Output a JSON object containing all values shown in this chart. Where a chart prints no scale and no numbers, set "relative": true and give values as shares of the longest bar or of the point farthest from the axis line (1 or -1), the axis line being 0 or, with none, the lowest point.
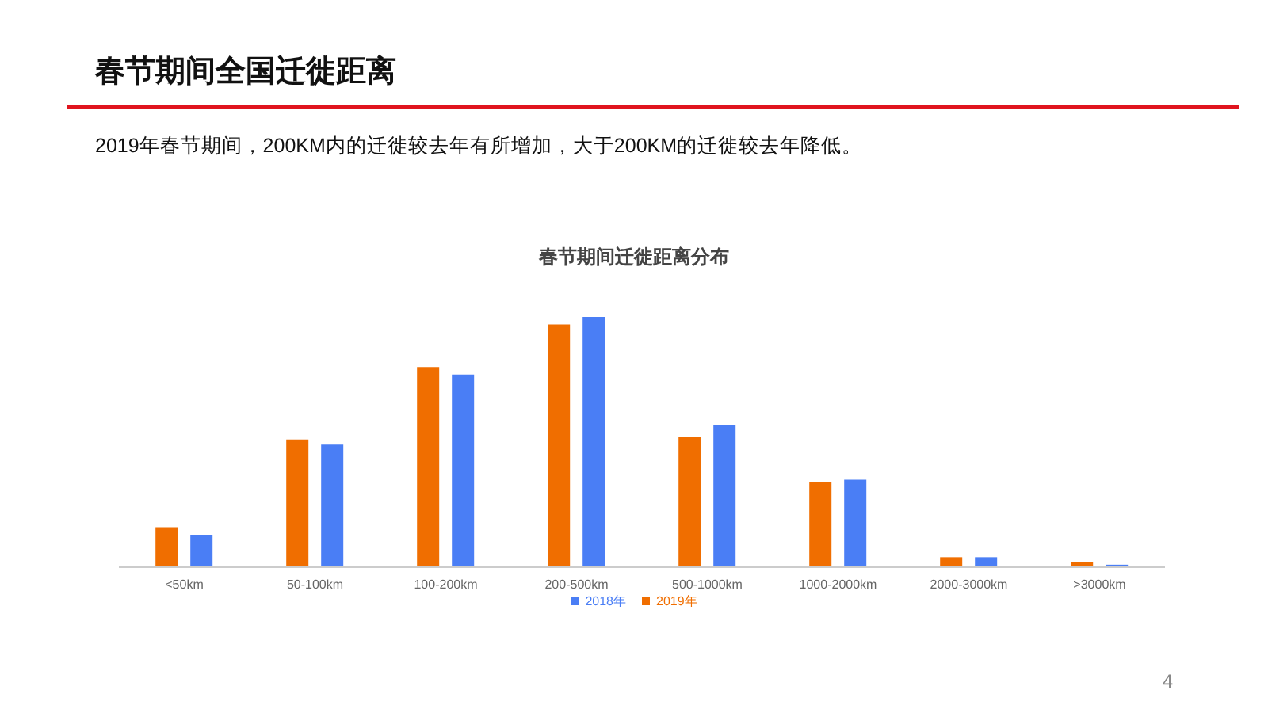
{
  "chart_data": {
    "type": "bar",
    "title": "春节期间全国迁徙距离",
    "subtitle": "2019年春节期间，200KM内的迁徙较去年有所增加，大于200KM的迁徙较去年降低。",
    "annotations": [
      "春节期间迁徙距离分布",
      "4"
    ],
    "relative": true,
    "categories": [
      "<50km",
      "50-100km",
      "100-200km",
      "200-500km",
      "500-1000km",
      "1000-2000km",
      "2000-3000km",
      ">3000km"
    ],
    "series": [
      {
        "name": "2019年",
        "color": "#f06e00",
        "values": [
          0.16,
          0.51,
          0.8,
          0.97,
          0.52,
          0.34,
          0.04,
          0.02
        ]
      },
      {
        "name": "2018年",
        "color": "#4a7ef5",
        "values": [
          0.13,
          0.49,
          0.77,
          1,
          0.57,
          0.35,
          0.04,
          0.01
        ]
      }
    ],
    "legend": "bottom",
    "grid": false
  }
}
